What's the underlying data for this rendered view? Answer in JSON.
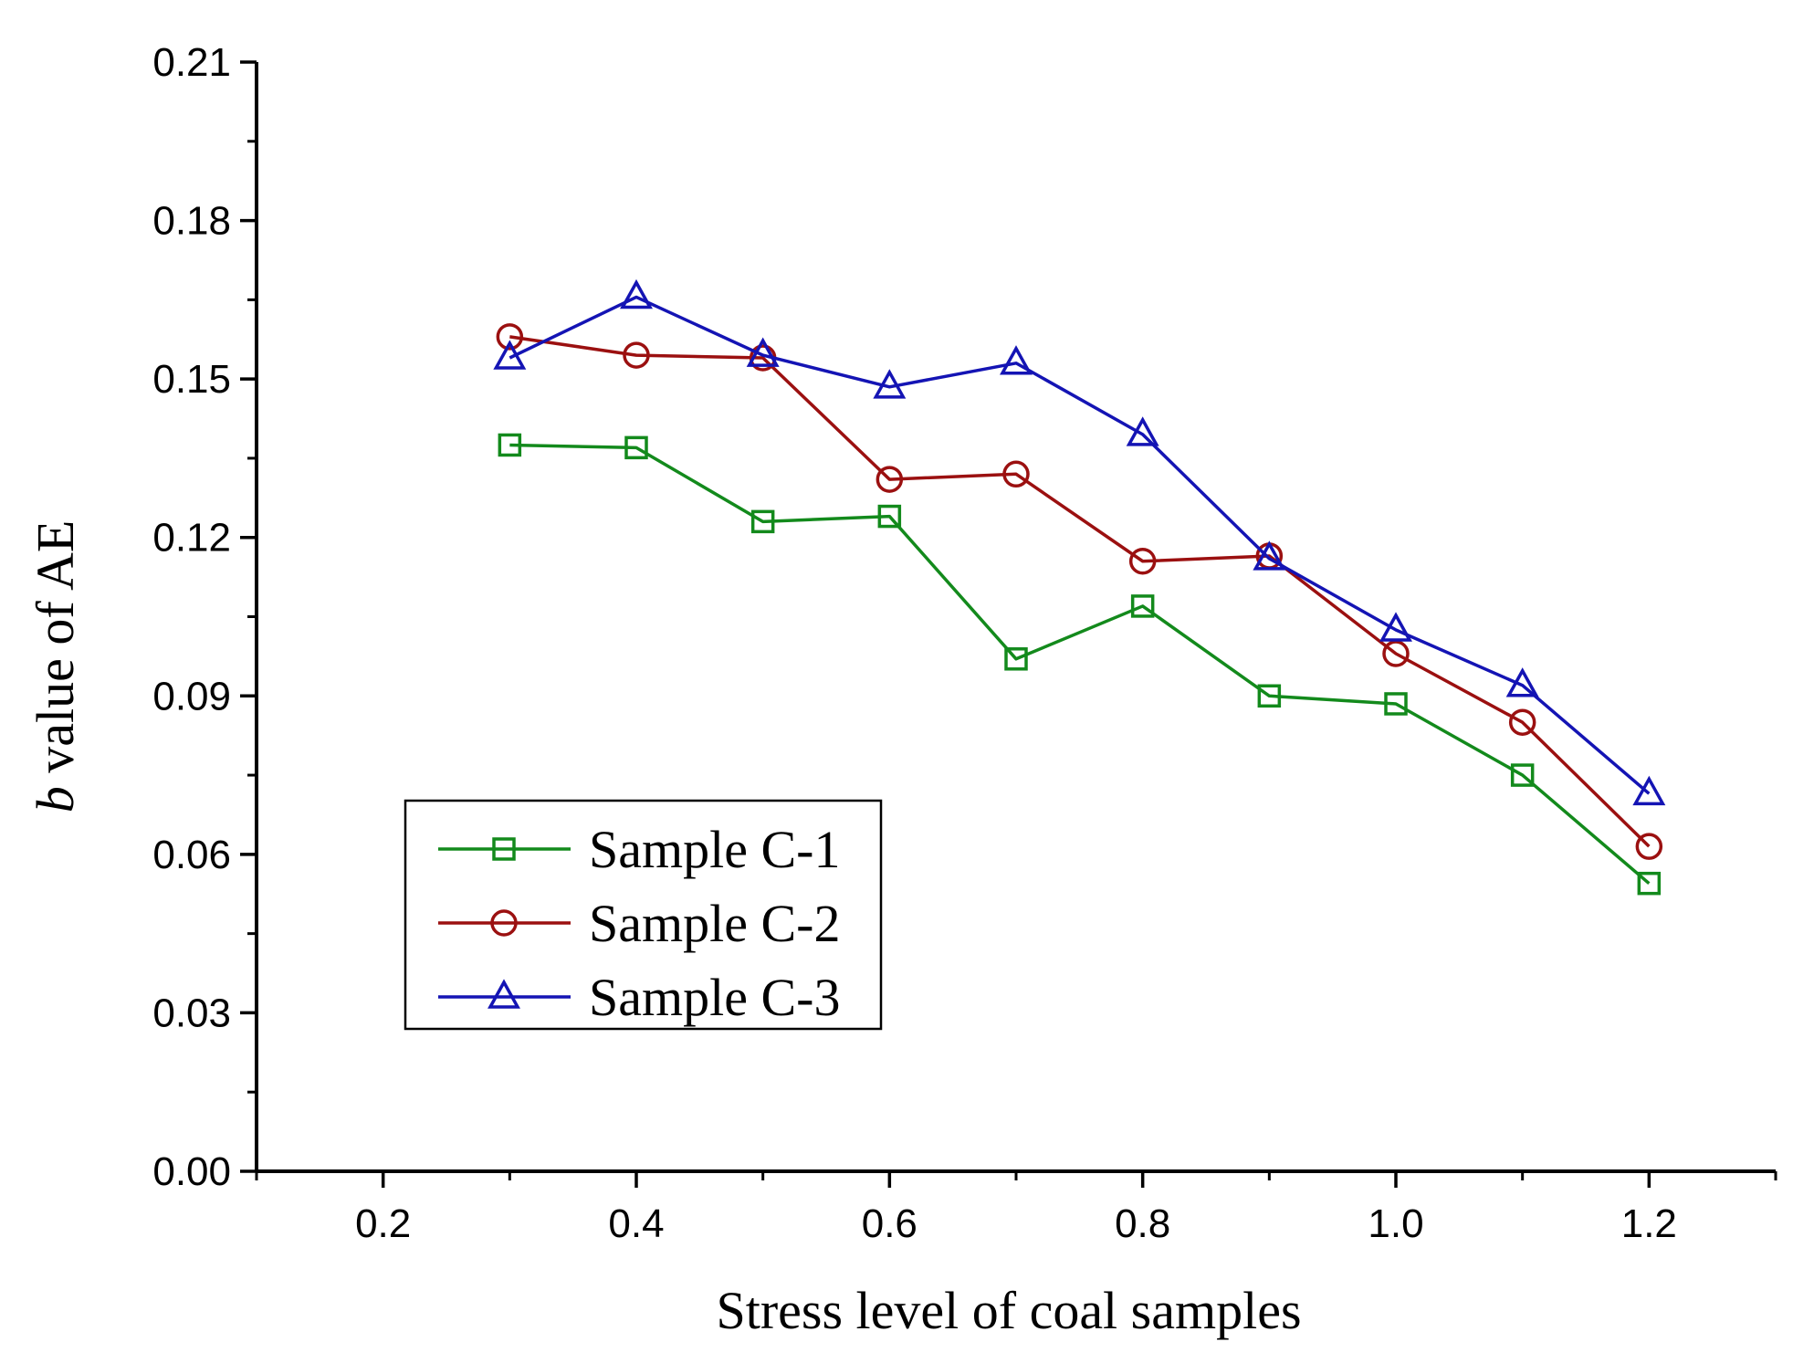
{
  "chart_data": {
    "type": "line",
    "title": "",
    "xlabel": "Stress level of coal samples",
    "ylabel_italic": "b",
    "ylabel_rest": " value of AE",
    "xlim": [
      0.1,
      1.3
    ],
    "ylim": [
      0.0,
      0.21
    ],
    "xticks": [
      0.2,
      0.4,
      0.6,
      0.8,
      1.0,
      1.2
    ],
    "xtick_labels": [
      "0.2",
      "0.4",
      "0.6",
      "0.8",
      "1.0",
      "1.2"
    ],
    "yticks": [
      0.0,
      0.03,
      0.06,
      0.09,
      0.12,
      0.15,
      0.18,
      0.21
    ],
    "ytick_labels": [
      "0.00",
      "0.03",
      "0.06",
      "0.09",
      "0.12",
      "0.15",
      "0.18",
      "0.21"
    ],
    "grid": false,
    "legend_position": "bottom-left",
    "x": [
      0.3,
      0.4,
      0.5,
      0.6,
      0.7,
      0.8,
      0.9,
      1.0,
      1.1,
      1.2
    ],
    "series": [
      {
        "name": "Sample C-1",
        "color": "#138a1c",
        "marker": "square",
        "values": [
          0.1375,
          0.137,
          0.123,
          0.124,
          0.097,
          0.107,
          0.09,
          0.0885,
          0.075,
          0.0545
        ]
      },
      {
        "name": "Sample C-2",
        "color": "#9b1010",
        "marker": "circle",
        "values": [
          0.158,
          0.1545,
          0.154,
          0.131,
          0.132,
          0.1155,
          0.1165,
          0.098,
          0.085,
          0.0615
        ]
      },
      {
        "name": "Sample C-3",
        "color": "#1414b4",
        "marker": "triangle",
        "values": [
          0.154,
          0.1655,
          0.1545,
          0.1485,
          0.153,
          0.1395,
          0.116,
          0.1025,
          0.092,
          0.0715
        ]
      }
    ]
  }
}
